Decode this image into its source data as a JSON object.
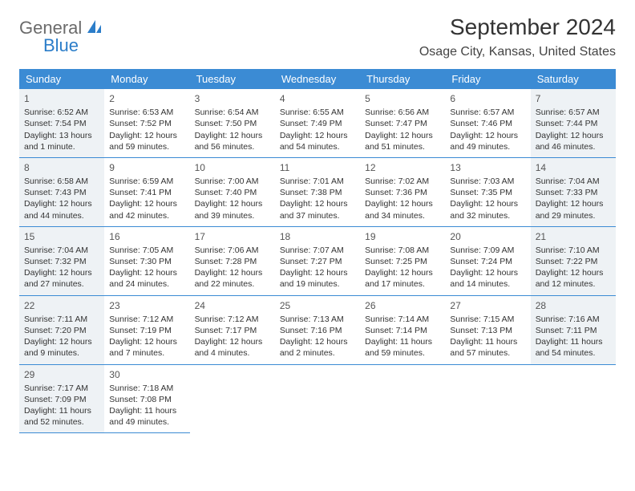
{
  "logo": {
    "word1": "General",
    "word2": "Blue"
  },
  "title": "September 2024",
  "location": "Osage City, Kansas, United States",
  "colors": {
    "header_bg": "#3b8bd4",
    "header_text": "#ffffff",
    "border": "#3b8bd4",
    "faded_bg": "#eef2f5",
    "logo_gray": "#6b6b6b",
    "logo_blue": "#2b7dc9"
  },
  "weekdays": [
    "Sunday",
    "Monday",
    "Tuesday",
    "Wednesday",
    "Thursday",
    "Friday",
    "Saturday"
  ],
  "days": [
    {
      "n": 1,
      "faded": true,
      "sunrise": "6:52 AM",
      "sunset": "7:54 PM",
      "daylight": "13 hours and 1 minute."
    },
    {
      "n": 2,
      "sunrise": "6:53 AM",
      "sunset": "7:52 PM",
      "daylight": "12 hours and 59 minutes."
    },
    {
      "n": 3,
      "sunrise": "6:54 AM",
      "sunset": "7:50 PM",
      "daylight": "12 hours and 56 minutes."
    },
    {
      "n": 4,
      "sunrise": "6:55 AM",
      "sunset": "7:49 PM",
      "daylight": "12 hours and 54 minutes."
    },
    {
      "n": 5,
      "sunrise": "6:56 AM",
      "sunset": "7:47 PM",
      "daylight": "12 hours and 51 minutes."
    },
    {
      "n": 6,
      "sunrise": "6:57 AM",
      "sunset": "7:46 PM",
      "daylight": "12 hours and 49 minutes."
    },
    {
      "n": 7,
      "faded": true,
      "sunrise": "6:57 AM",
      "sunset": "7:44 PM",
      "daylight": "12 hours and 46 minutes."
    },
    {
      "n": 8,
      "faded": true,
      "sunrise": "6:58 AM",
      "sunset": "7:43 PM",
      "daylight": "12 hours and 44 minutes."
    },
    {
      "n": 9,
      "sunrise": "6:59 AM",
      "sunset": "7:41 PM",
      "daylight": "12 hours and 42 minutes."
    },
    {
      "n": 10,
      "sunrise": "7:00 AM",
      "sunset": "7:40 PM",
      "daylight": "12 hours and 39 minutes."
    },
    {
      "n": 11,
      "sunrise": "7:01 AM",
      "sunset": "7:38 PM",
      "daylight": "12 hours and 37 minutes."
    },
    {
      "n": 12,
      "sunrise": "7:02 AM",
      "sunset": "7:36 PM",
      "daylight": "12 hours and 34 minutes."
    },
    {
      "n": 13,
      "sunrise": "7:03 AM",
      "sunset": "7:35 PM",
      "daylight": "12 hours and 32 minutes."
    },
    {
      "n": 14,
      "faded": true,
      "sunrise": "7:04 AM",
      "sunset": "7:33 PM",
      "daylight": "12 hours and 29 minutes."
    },
    {
      "n": 15,
      "faded": true,
      "sunrise": "7:04 AM",
      "sunset": "7:32 PM",
      "daylight": "12 hours and 27 minutes."
    },
    {
      "n": 16,
      "sunrise": "7:05 AM",
      "sunset": "7:30 PM",
      "daylight": "12 hours and 24 minutes."
    },
    {
      "n": 17,
      "sunrise": "7:06 AM",
      "sunset": "7:28 PM",
      "daylight": "12 hours and 22 minutes."
    },
    {
      "n": 18,
      "sunrise": "7:07 AM",
      "sunset": "7:27 PM",
      "daylight": "12 hours and 19 minutes."
    },
    {
      "n": 19,
      "sunrise": "7:08 AM",
      "sunset": "7:25 PM",
      "daylight": "12 hours and 17 minutes."
    },
    {
      "n": 20,
      "sunrise": "7:09 AM",
      "sunset": "7:24 PM",
      "daylight": "12 hours and 14 minutes."
    },
    {
      "n": 21,
      "faded": true,
      "sunrise": "7:10 AM",
      "sunset": "7:22 PM",
      "daylight": "12 hours and 12 minutes."
    },
    {
      "n": 22,
      "faded": true,
      "sunrise": "7:11 AM",
      "sunset": "7:20 PM",
      "daylight": "12 hours and 9 minutes."
    },
    {
      "n": 23,
      "sunrise": "7:12 AM",
      "sunset": "7:19 PM",
      "daylight": "12 hours and 7 minutes."
    },
    {
      "n": 24,
      "sunrise": "7:12 AM",
      "sunset": "7:17 PM",
      "daylight": "12 hours and 4 minutes."
    },
    {
      "n": 25,
      "sunrise": "7:13 AM",
      "sunset": "7:16 PM",
      "daylight": "12 hours and 2 minutes."
    },
    {
      "n": 26,
      "sunrise": "7:14 AM",
      "sunset": "7:14 PM",
      "daylight": "11 hours and 59 minutes."
    },
    {
      "n": 27,
      "sunrise": "7:15 AM",
      "sunset": "7:13 PM",
      "daylight": "11 hours and 57 minutes."
    },
    {
      "n": 28,
      "faded": true,
      "sunrise": "7:16 AM",
      "sunset": "7:11 PM",
      "daylight": "11 hours and 54 minutes."
    },
    {
      "n": 29,
      "faded": true,
      "sunrise": "7:17 AM",
      "sunset": "7:09 PM",
      "daylight": "11 hours and 52 minutes."
    },
    {
      "n": 30,
      "sunrise": "7:18 AM",
      "sunset": "7:08 PM",
      "daylight": "11 hours and 49 minutes."
    }
  ],
  "labels": {
    "sunrise": "Sunrise:",
    "sunset": "Sunset:",
    "daylight": "Daylight:"
  }
}
